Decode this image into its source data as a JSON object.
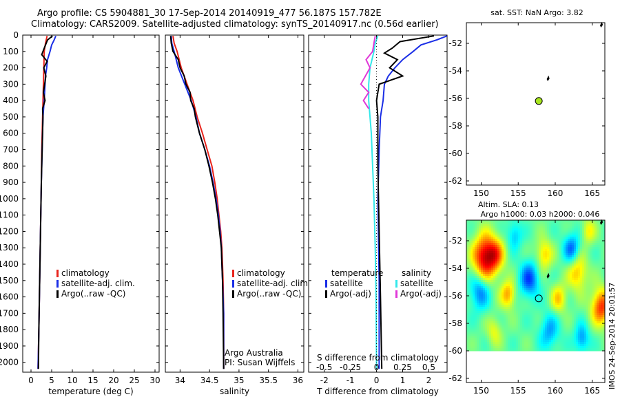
{
  "title_line1": "Argo profile: CS 5904881_30 17-Sep-2014 20140919_477 56.187S 157.782E",
  "title_line2": "Climatology: CARS2009. Satellite-adjusted climatology: synTS_20140917.nc (0.56d earlier)",
  "side_text": "IMOS 24-Sep-2014 20:01:57",
  "colors": {
    "climatology": "#e8241c",
    "satellite": "#1a2ee6",
    "argo": "#000000",
    "sat_s": "#33e8ea",
    "argo_s": "#e038d8"
  },
  "chart_data": [
    {
      "id": "temperature",
      "type": "line",
      "xlabel": "temperature (deg C)",
      "ylabel": "",
      "xlim": [
        -2,
        31
      ],
      "ylim": [
        2060,
        0
      ],
      "xticks": [
        0,
        5,
        10,
        15,
        20,
        25,
        30
      ],
      "xtick_labels": [
        "0",
        "5",
        "10",
        "15",
        "20",
        "25",
        "30"
      ],
      "yticks": [
        0,
        100,
        200,
        300,
        400,
        500,
        600,
        700,
        800,
        900,
        1000,
        1100,
        1200,
        1300,
        1400,
        1500,
        1600,
        1700,
        1800,
        1900,
        2000
      ],
      "ytick_labels": [
        "0",
        "100",
        "200",
        "300",
        "400",
        "500",
        "600",
        "700",
        "800",
        "900",
        "1000",
        "1100",
        "1200",
        "1300",
        "1400",
        "1500",
        "1600",
        "1700",
        "1800",
        "1900",
        "2000"
      ],
      "legend": [
        "climatology",
        "satellite-adj. clim.",
        "Argo(..raw -QC)"
      ],
      "series": [
        {
          "name": "climatology",
          "color": "#e8241c",
          "points": [
            [
              3.9,
              5
            ],
            [
              3.5,
              50
            ],
            [
              3.2,
              100
            ],
            [
              3.1,
              200
            ],
            [
              3.0,
              300
            ],
            [
              2.9,
              400
            ],
            [
              2.8,
              500
            ],
            [
              2.6,
              700
            ],
            [
              2.5,
              900
            ],
            [
              2.3,
              1200
            ],
            [
              2.1,
              1500
            ],
            [
              1.9,
              1800
            ],
            [
              1.7,
              2040
            ]
          ]
        },
        {
          "name": "satellite-adj. clim.",
          "color": "#1a2ee6",
          "points": [
            [
              6.0,
              5
            ],
            [
              5.6,
              30
            ],
            [
              5.0,
              60
            ],
            [
              4.6,
              100
            ],
            [
              4.0,
              150
            ],
            [
              3.8,
              200
            ],
            [
              3.5,
              250
            ],
            [
              3.4,
              300
            ],
            [
              3.2,
              400
            ],
            [
              2.9,
              500
            ],
            [
              2.7,
              700
            ],
            [
              2.5,
              900
            ],
            [
              2.3,
              1200
            ],
            [
              2.1,
              1500
            ],
            [
              1.9,
              1800
            ],
            [
              1.7,
              2040
            ]
          ]
        },
        {
          "name": "Argo(..raw -QC)",
          "color": "#000000",
          "points": [
            [
              5.2,
              5
            ],
            [
              4.0,
              30
            ],
            [
              3.2,
              80
            ],
            [
              2.6,
              120
            ],
            [
              3.9,
              160
            ],
            [
              3.1,
              200
            ],
            [
              3.6,
              250
            ],
            [
              3.3,
              300
            ],
            [
              3.0,
              350
            ],
            [
              3.4,
              400
            ],
            [
              2.8,
              450
            ],
            [
              2.9,
              500
            ],
            [
              2.7,
              700
            ],
            [
              2.5,
              900
            ],
            [
              2.3,
              1200
            ],
            [
              2.1,
              1500
            ],
            [
              1.9,
              1800
            ],
            [
              1.8,
              2040
            ]
          ]
        }
      ]
    },
    {
      "id": "salinity",
      "type": "line",
      "xlabel": "salinity",
      "ylabel": "",
      "xlim": [
        33.75,
        36.1
      ],
      "ylim": [
        2060,
        0
      ],
      "xticks": [
        34,
        34.5,
        35,
        35.5,
        36
      ],
      "xtick_labels": [
        "34",
        "34.5",
        "35",
        "35.5",
        "36"
      ],
      "legend": [
        "climatology",
        "satellite-adj. clim.",
        "Argo(..raw -QC)"
      ],
      "annotation": [
        "Argo Australia",
        "PI: Susan Wijffels"
      ],
      "series": [
        {
          "name": "climatology",
          "color": "#e8241c",
          "points": [
            [
              33.88,
              5
            ],
            [
              33.9,
              50
            ],
            [
              33.95,
              100
            ],
            [
              34.02,
              200
            ],
            [
              34.12,
              300
            ],
            [
              34.22,
              400
            ],
            [
              34.29,
              500
            ],
            [
              34.38,
              600
            ],
            [
              34.46,
              700
            ],
            [
              34.54,
              800
            ],
            [
              34.59,
              900
            ],
            [
              34.63,
              1000
            ],
            [
              34.66,
              1100
            ],
            [
              34.69,
              1200
            ],
            [
              34.71,
              1300
            ],
            [
              34.72,
              1400
            ],
            [
              34.73,
              1500
            ],
            [
              34.74,
              1700
            ],
            [
              34.74,
              2040
            ]
          ]
        },
        {
          "name": "satellite-adj. clim.",
          "color": "#1a2ee6",
          "points": [
            [
              33.85,
              5
            ],
            [
              33.86,
              50
            ],
            [
              33.9,
              100
            ],
            [
              33.97,
              200
            ],
            [
              34.08,
              300
            ],
            [
              34.19,
              400
            ],
            [
              34.27,
              500
            ],
            [
              34.33,
              600
            ],
            [
              34.42,
              700
            ],
            [
              34.5,
              800
            ],
            [
              34.56,
              900
            ],
            [
              34.61,
              1000
            ],
            [
              34.65,
              1100
            ],
            [
              34.68,
              1200
            ],
            [
              34.7,
              1300
            ],
            [
              34.71,
              1400
            ],
            [
              34.72,
              1500
            ],
            [
              34.74,
              1700
            ],
            [
              34.74,
              2040
            ]
          ]
        },
        {
          "name": "Argo(..raw -QC)",
          "color": "#000000",
          "points": [
            [
              33.84,
              5
            ],
            [
              33.85,
              50
            ],
            [
              33.88,
              100
            ],
            [
              33.97,
              150
            ],
            [
              34.0,
              200
            ],
            [
              34.07,
              250
            ],
            [
              34.1,
              300
            ],
            [
              34.17,
              350
            ],
            [
              34.18,
              400
            ],
            [
              34.24,
              450
            ],
            [
              34.26,
              500
            ],
            [
              34.33,
              600
            ],
            [
              34.42,
              700
            ],
            [
              34.49,
              800
            ],
            [
              34.55,
              900
            ],
            [
              34.6,
              1000
            ],
            [
              34.64,
              1100
            ],
            [
              34.67,
              1200
            ],
            [
              34.7,
              1300
            ],
            [
              34.71,
              1400
            ],
            [
              34.72,
              1500
            ],
            [
              34.73,
              1700
            ],
            [
              34.74,
              2040
            ]
          ]
        }
      ]
    },
    {
      "id": "differences",
      "type": "line",
      "xlabel": "T difference from climatology",
      "xlabel_top": "S difference from climatology",
      "xlim": [
        -2.6,
        2.7
      ],
      "ylim": [
        2060,
        0
      ],
      "xticks": [
        -2,
        -1,
        0,
        1,
        2
      ],
      "xtick_labels": [
        "-2",
        "-1",
        "0",
        "1",
        "2"
      ],
      "xticks_top_labels": [
        "-0.5",
        "-0.25",
        "0",
        "0.25",
        "0.5"
      ],
      "legend_headers": [
        "temperature",
        "salinity"
      ],
      "legend_left": [
        "satellite",
        "Argo(-adj)"
      ],
      "legend_right": [
        "satellite",
        "Argo(-adj)"
      ],
      "series": [
        {
          "name": "T satellite",
          "color": "#1a2ee6",
          "points": [
            [
              2.7,
              5
            ],
            [
              2.3,
              30
            ],
            [
              1.7,
              60
            ],
            [
              1.4,
              100
            ],
            [
              1.0,
              150
            ],
            [
              0.7,
              200
            ],
            [
              0.45,
              250
            ],
            [
              0.3,
              300
            ],
            [
              0.25,
              400
            ],
            [
              0.15,
              500
            ],
            [
              0.1,
              700
            ],
            [
              0.05,
              1000
            ],
            [
              0.1,
              1500
            ],
            [
              0.1,
              2040
            ]
          ]
        },
        {
          "name": "T Argo(-adj)",
          "color": "#000000",
          "points": [
            [
              2.2,
              5
            ],
            [
              0.9,
              40
            ],
            [
              0.6,
              80
            ],
            [
              0.3,
              110
            ],
            [
              0.8,
              150
            ],
            [
              0.5,
              200
            ],
            [
              1.0,
              250
            ],
            [
              0.1,
              300
            ],
            [
              0.0,
              400
            ],
            [
              0.05,
              500
            ],
            [
              0.05,
              800
            ],
            [
              0.1,
              1200
            ],
            [
              0.15,
              1600
            ],
            [
              0.2,
              2040
            ]
          ]
        },
        {
          "name": "S satellite",
          "color": "#33e8ea",
          "points": [
            [
              0.05,
              5
            ],
            [
              -0.05,
              50
            ],
            [
              -0.1,
              100
            ],
            [
              -0.25,
              200
            ],
            [
              -0.3,
              300
            ],
            [
              -0.3,
              400
            ],
            [
              -0.25,
              500
            ],
            [
              -0.2,
              600
            ],
            [
              -0.15,
              800
            ],
            [
              -0.1,
              1000
            ],
            [
              -0.05,
              1300
            ],
            [
              -0.02,
              1600
            ],
            [
              0.0,
              2040
            ]
          ]
        },
        {
          "name": "S Argo(-adj)",
          "color": "#e038d8",
          "points": [
            [
              -0.05,
              5
            ],
            [
              -0.1,
              50
            ],
            [
              -0.15,
              100
            ],
            [
              -0.4,
              150
            ],
            [
              -0.25,
              200
            ],
            [
              -0.6,
              300
            ],
            [
              -0.3,
              350
            ],
            [
              -0.5,
              400
            ],
            [
              -0.3,
              450
            ]
          ]
        }
      ]
    },
    {
      "id": "sst_map",
      "type": "scatter",
      "title": "sat. SST: NaN Argo: 3.82",
      "xlim": [
        148,
        166.7
      ],
      "ylim": [
        -62.3,
        -50.5
      ],
      "xticks": [
        150,
        155,
        160,
        165
      ],
      "yticks": [
        -52,
        -54,
        -56,
        -58,
        -60,
        -62
      ],
      "ytick_labels": [
        "-52",
        "-54",
        "-56",
        "-58",
        "-60",
        "-62"
      ],
      "marker": {
        "lon": 157.78,
        "lat": -56.19,
        "color": "#a8e61e"
      },
      "islands": [
        [
          166.1,
          -50.7
        ],
        [
          158.9,
          -54.6
        ]
      ]
    },
    {
      "id": "sla_map",
      "type": "heatmap",
      "title_line1": "Altim. SLA: 0.13",
      "title_line2": "Argo h1000: 0.03 h2000: 0.046",
      "xlim": [
        148,
        166.7
      ],
      "ylim": [
        -62.3,
        -50.5
      ],
      "xticks": [
        150,
        155,
        160,
        165
      ],
      "yticks": [
        -52,
        -54,
        -56,
        -58,
        -60,
        -62
      ],
      "ytick_labels": [
        "-52",
        "-54",
        "-56",
        "-58",
        "-60",
        "-62"
      ],
      "data_extent": {
        "lat_min": -60,
        "lat_max": -50.5
      },
      "marker": {
        "lon": 157.78,
        "lat": -56.19
      },
      "blobs": [
        {
          "lon": 150.5,
          "lat": -53.2,
          "amp": 1.0,
          "r": 1.6
        },
        {
          "lon": 152.0,
          "lat": -53.0,
          "amp": 0.5,
          "r": 1.2
        },
        {
          "lon": 158.5,
          "lat": -53.0,
          "amp": 0.45,
          "r": 1.1
        },
        {
          "lon": 153.6,
          "lat": -55.9,
          "amp": 0.55,
          "r": 1.0
        },
        {
          "lon": 163.0,
          "lat": -54.3,
          "amp": 0.5,
          "r": 1.3
        },
        {
          "lon": 166.2,
          "lat": -56.8,
          "amp": 0.8,
          "r": 1.3
        },
        {
          "lon": 160.5,
          "lat": -56.2,
          "amp": 0.45,
          "r": 1.0
        },
        {
          "lon": 156.5,
          "lat": -54.8,
          "amp": -0.6,
          "r": 1.3
        },
        {
          "lon": 149.8,
          "lat": -55.7,
          "amp": -0.5,
          "r": 1.3
        },
        {
          "lon": 162.2,
          "lat": -52.6,
          "amp": -0.55,
          "r": 1.1
        },
        {
          "lon": 159.2,
          "lat": -58.6,
          "amp": -0.4,
          "r": 1.3
        },
        {
          "lon": 163.6,
          "lat": -59.1,
          "amp": -0.45,
          "r": 1.0
        },
        {
          "lon": 154.5,
          "lat": -51.6,
          "amp": -0.35,
          "r": 1.0
        },
        {
          "lon": 151.8,
          "lat": -58.6,
          "amp": 0.3,
          "r": 1.0
        },
        {
          "lon": 164.5,
          "lat": -51.3,
          "amp": 0.35,
          "r": 0.9
        }
      ]
    }
  ]
}
